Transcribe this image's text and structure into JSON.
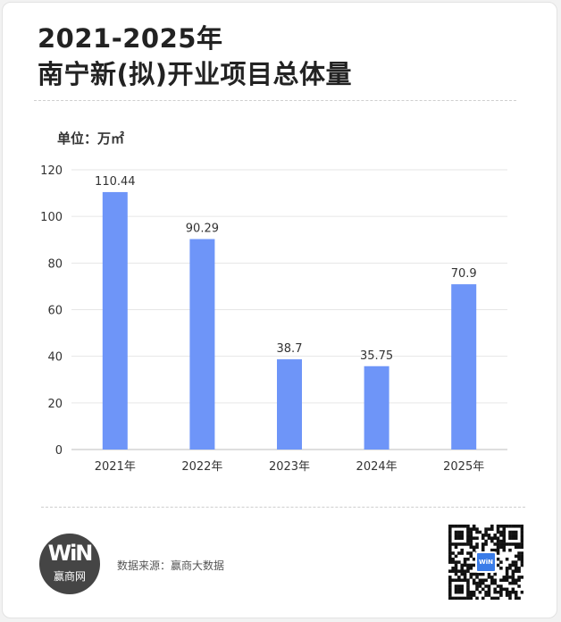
{
  "title_line1": "2021-2025年",
  "title_line2": "南宁新(拟)开业项目总体量",
  "unit": "单位：万㎡",
  "colors": {
    "bar": "#6e95f8",
    "grid": "#e6e6e6",
    "text": "#333333"
  },
  "chart_data": {
    "type": "bar",
    "title": "2021-2025年 南宁新(拟)开业项目总体量",
    "xlabel": "",
    "ylabel": "",
    "unit": "万㎡",
    "categories": [
      "2021年",
      "2022年",
      "2023年",
      "2024年",
      "2025年"
    ],
    "values": [
      110.44,
      90.29,
      38.7,
      35.75,
      70.9
    ],
    "data_labels": [
      "110.44",
      "90.29",
      "38.7",
      "35.75",
      "70.9"
    ],
    "ylim": [
      0,
      120
    ],
    "yticks": [
      0,
      20,
      40,
      60,
      80,
      100,
      120
    ],
    "grid": true,
    "legend": "none"
  },
  "footer": {
    "logo_mark": "WiN",
    "logo_text": "赢商网",
    "source": "数据来源：赢商大数据",
    "qr_icon": "qr-code-icon",
    "qr_badge": "WiN"
  }
}
